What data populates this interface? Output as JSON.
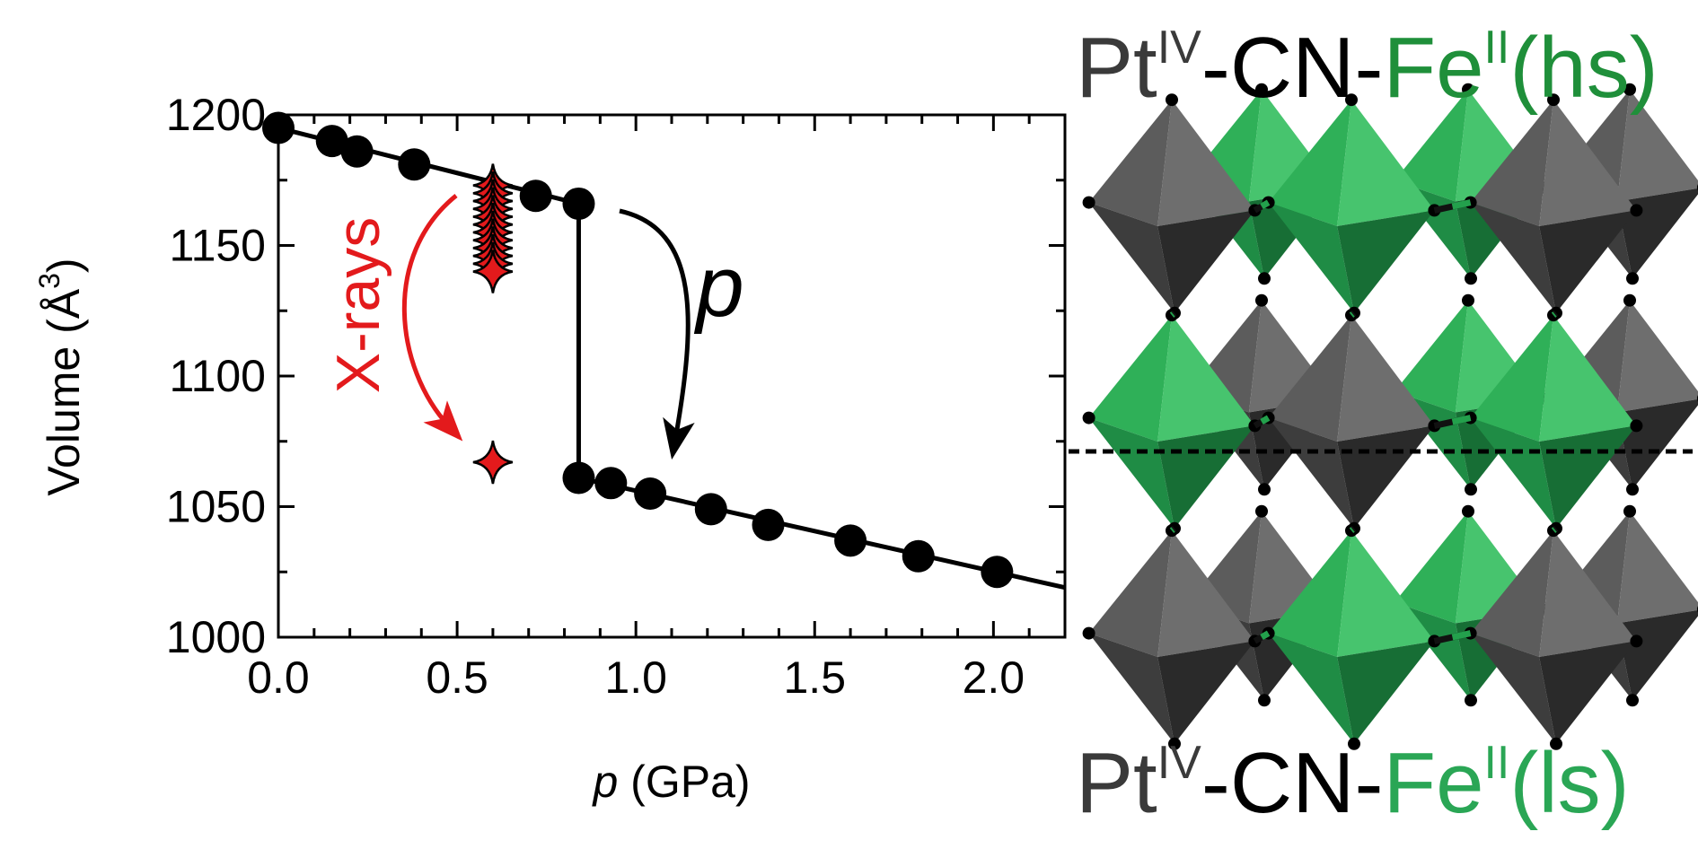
{
  "chart_data": {
    "type": "scatter",
    "xlabel": {
      "italic": "p",
      "rest": " (GPa)"
    },
    "ylabel": {
      "main": "Volume (",
      "unit": "Å",
      "sup": "3",
      "close": ")"
    },
    "xlim": [
      0.0,
      2.2
    ],
    "ylim": [
      1000,
      1200
    ],
    "xticks": [
      "0.0",
      "0.5",
      "1.0",
      "1.5",
      "2.0"
    ],
    "yticks": [
      "1000",
      "1050",
      "1100",
      "1150",
      "1200"
    ],
    "series": [
      {
        "kind": "pressure-black-circles",
        "x": [
          0.0,
          0.15,
          0.22,
          0.38,
          0.72,
          0.84,
          0.84,
          0.93,
          1.04,
          1.21,
          1.37,
          1.6,
          1.79,
          2.01
        ],
        "y": [
          1195,
          1190,
          1186,
          1181,
          1169,
          1166,
          1061,
          1059,
          1055,
          1049,
          1043,
          1037,
          1031,
          1025
        ]
      },
      {
        "kind": "xray-red-diamonds",
        "x": [
          0.6,
          0.6,
          0.6,
          0.6,
          0.6,
          0.6,
          0.6,
          0.6,
          0.6,
          0.6,
          0.6,
          0.6,
          0.6
        ],
        "y": [
          1173,
          1170,
          1167,
          1164,
          1161,
          1158,
          1155,
          1152,
          1149,
          1146,
          1143,
          1140,
          1067
        ]
      }
    ],
    "fit_lines": [
      {
        "x": [
          0.0,
          0.84
        ],
        "y": [
          1195,
          1166
        ]
      },
      {
        "x": [
          0.84,
          0.84
        ],
        "y": [
          1166,
          1061
        ]
      },
      {
        "x": [
          0.84,
          2.2
        ],
        "y": [
          1061,
          1019
        ]
      }
    ],
    "annotations": {
      "xrays_label": "X-rays",
      "pressure_label": "p"
    },
    "colors": {
      "xray": "#e31a1c",
      "points": "#000000"
    }
  },
  "formula_top": {
    "pt": "Pt",
    "pt_ox": "IV",
    "link": "-CN-",
    "fe": "Fe",
    "fe_ox": "II",
    "spin": "(hs)",
    "fe_color": "#1f8f3a"
  },
  "formula_bottom": {
    "pt": "Pt",
    "pt_ox": "IV",
    "link": "-CN-",
    "fe": "Fe",
    "fe_ox": "II",
    "spin": "(ls)",
    "fe_color": "#2aa655"
  },
  "structure": {
    "pt_color": "#4a4a4a",
    "fe_color": "#23a04c"
  }
}
